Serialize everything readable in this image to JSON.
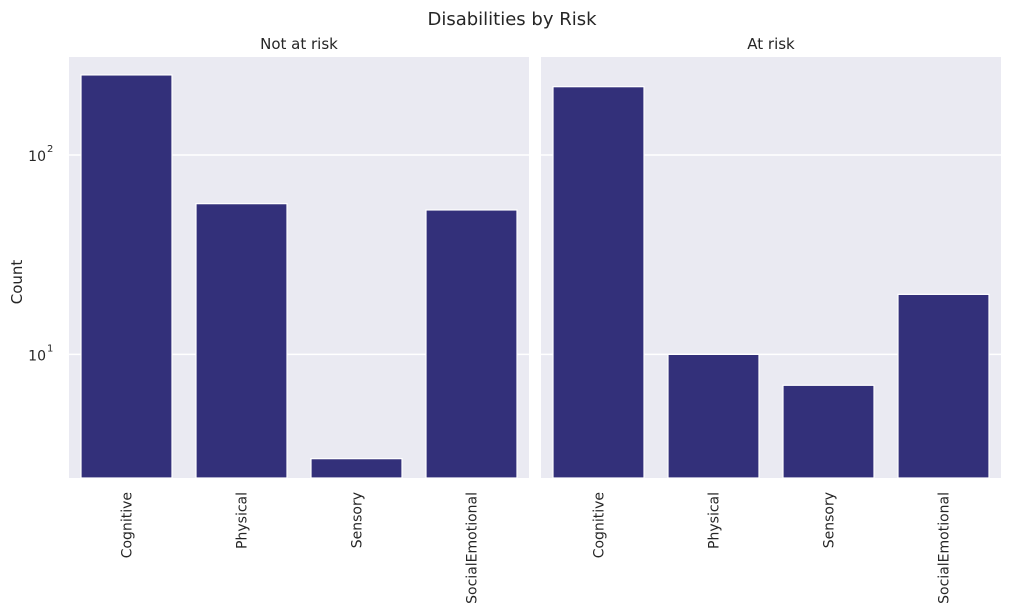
{
  "chart_data": {
    "type": "bar",
    "title": "Disabilities by Risk",
    "ylabel": "Count",
    "yscale": "log",
    "ylim": [
      2.4,
      310
    ],
    "ytick_labels": [
      {
        "base": "10",
        "exp": "1",
        "value": 10
      },
      {
        "base": "10",
        "exp": "2",
        "value": 100
      }
    ],
    "grid": true,
    "bar_color": "#33307a",
    "background_color": "#eaeaf2",
    "categories": [
      "Cognitive",
      "Physical",
      "Sensory",
      "SocialEmotional"
    ],
    "panels": [
      {
        "title": "Not at risk",
        "values": [
          252,
          57,
          3,
          53
        ]
      },
      {
        "title": "At risk",
        "values": [
          220,
          10,
          7,
          20
        ]
      }
    ]
  }
}
